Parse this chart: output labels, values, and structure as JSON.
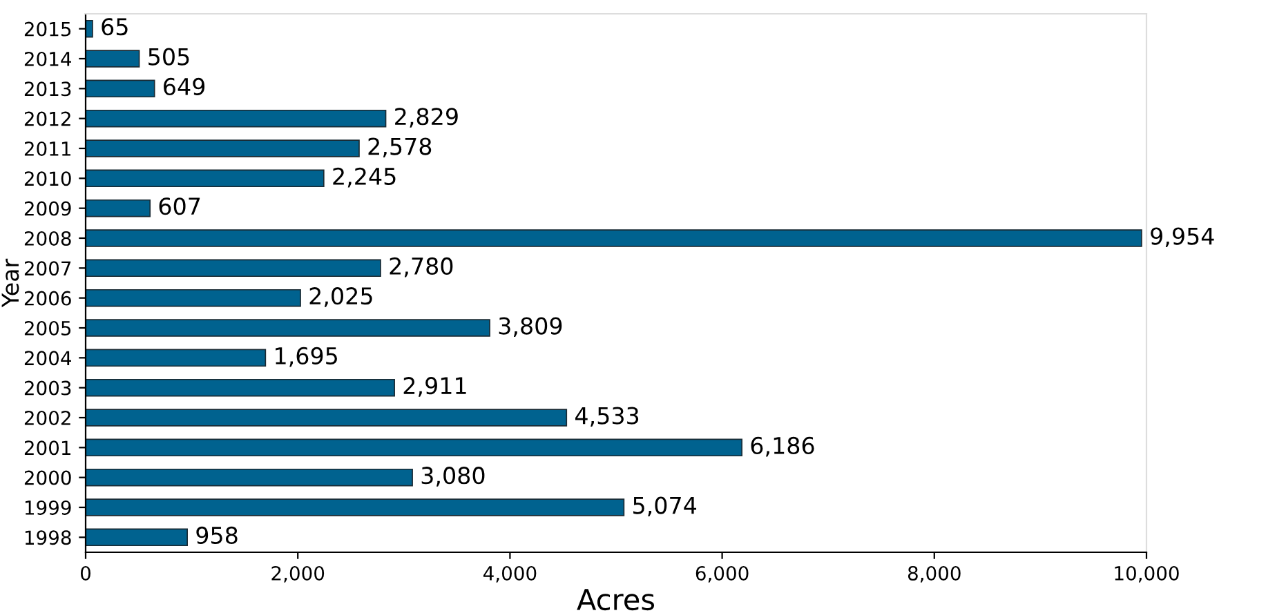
{
  "chart_data": {
    "type": "bar",
    "orientation": "horizontal",
    "xlabel": "Acres",
    "ylabel": "Year",
    "categories": [
      "2015",
      "2014",
      "2013",
      "2012",
      "2011",
      "2010",
      "2009",
      "2008",
      "2007",
      "2006",
      "2005",
      "2004",
      "2003",
      "2002",
      "2001",
      "2000",
      "1999",
      "1998"
    ],
    "values": [
      65,
      505,
      649,
      2829,
      2578,
      2245,
      607,
      9954,
      2780,
      2025,
      3809,
      1695,
      2911,
      4533,
      6186,
      3080,
      5074,
      958
    ],
    "value_labels": [
      "65",
      "505",
      "649",
      "2,829",
      "2,578",
      "2,245",
      "607",
      "9,954",
      "2,780",
      "2,025",
      "3,809",
      "1,695",
      "2,911",
      "4,533",
      "6,186",
      "3,080",
      "5,074",
      "958"
    ],
    "color": "#00628f",
    "xlim": [
      0,
      10000
    ],
    "xticks": [
      0,
      {
        "value": 2000,
        "label": "2,000"
      },
      {
        "value": 4000,
        "label": "4,000"
      },
      {
        "value": 6000,
        "label": "6,000"
      },
      {
        "value": 8000,
        "label": "8,000"
      },
      {
        "value": 10000,
        "label": "10,000"
      }
    ],
    "grid": false
  }
}
